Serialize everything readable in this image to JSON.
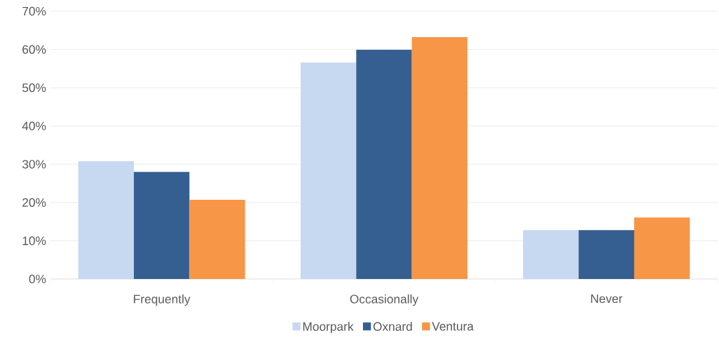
{
  "chart_data": {
    "type": "bar",
    "categories": [
      "Frequently",
      "Occasionally",
      "Never"
    ],
    "series": [
      {
        "name": "Moorpark",
        "color": "#c6d9f0",
        "values": [
          30.8,
          56.6,
          12.8
        ]
      },
      {
        "name": "Oxnard",
        "color": "#365f91",
        "values": [
          28.0,
          59.9,
          12.8
        ]
      },
      {
        "name": "Ventura",
        "color": "#f79646",
        "values": [
          20.7,
          63.2,
          16.1
        ]
      }
    ],
    "ylim": [
      0,
      70
    ],
    "yticks": [
      {
        "value": 0,
        "label": "0%"
      },
      {
        "value": 10,
        "label": "10%"
      },
      {
        "value": 20,
        "label": "20%"
      },
      {
        "value": 30,
        "label": "30%"
      },
      {
        "value": 40,
        "label": "40%"
      },
      {
        "value": 50,
        "label": "50%"
      },
      {
        "value": 60,
        "label": "60%"
      },
      {
        "value": 70,
        "label": "70%"
      }
    ],
    "grid": "y",
    "legend": "bottom"
  }
}
